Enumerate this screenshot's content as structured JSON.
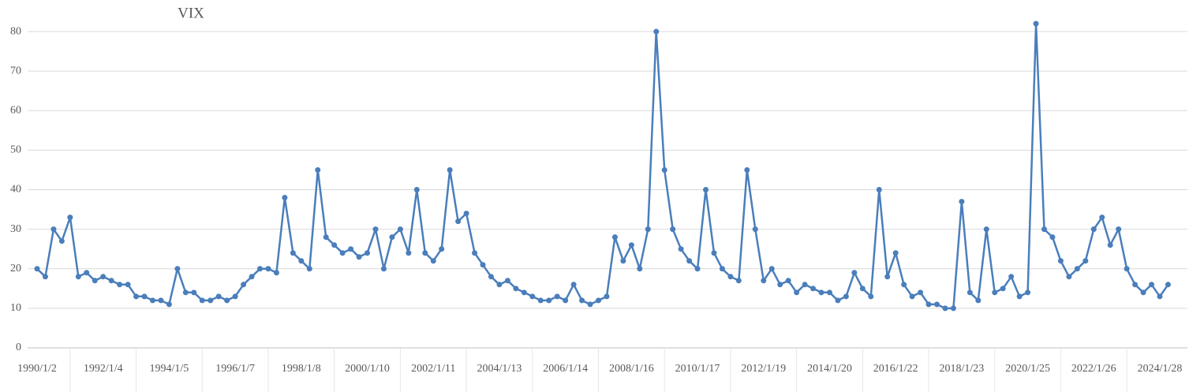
{
  "chart_data": {
    "type": "line",
    "title": "VIX",
    "categories": [
      "1990/1/2",
      null,
      null,
      null,
      null,
      null,
      null,
      null,
      "1992/1/4",
      null,
      null,
      null,
      null,
      null,
      null,
      null,
      "1994/1/5",
      null,
      null,
      null,
      null,
      null,
      null,
      null,
      "1996/1/7",
      null,
      null,
      null,
      null,
      null,
      null,
      null,
      "1998/1/8",
      null,
      null,
      null,
      null,
      null,
      null,
      null,
      "2000/1/10",
      null,
      null,
      null,
      null,
      null,
      null,
      null,
      "2002/1/11",
      null,
      null,
      null,
      null,
      null,
      null,
      null,
      "2004/1/13",
      null,
      null,
      null,
      null,
      null,
      null,
      null,
      "2006/1/14",
      null,
      null,
      null,
      null,
      null,
      null,
      null,
      "2008/1/16",
      null,
      null,
      null,
      null,
      null,
      null,
      null,
      "2010/1/17",
      null,
      null,
      null,
      null,
      null,
      null,
      null,
      "2012/1/19",
      null,
      null,
      null,
      null,
      null,
      null,
      null,
      "2014/1/20",
      null,
      null,
      null,
      null,
      null,
      null,
      null,
      "2016/1/22",
      null,
      null,
      null,
      null,
      null,
      null,
      null,
      "2018/1/23",
      null,
      null,
      null,
      null,
      null,
      null,
      null,
      "2020/1/25",
      null,
      null,
      null,
      null,
      null,
      null,
      null,
      "2022/1/26",
      null,
      null,
      null,
      null,
      null,
      null,
      null,
      "2024/1/28",
      null
    ],
    "series": [
      {
        "name": "VIX",
        "color": "#4a7ebb",
        "values": [
          20,
          18,
          30,
          27,
          33,
          18,
          19,
          17,
          18,
          17,
          16,
          16,
          13,
          13,
          12,
          12,
          11,
          20,
          14,
          14,
          12,
          12,
          13,
          12,
          13,
          16,
          18,
          20,
          20,
          19,
          38,
          24,
          22,
          20,
          45,
          28,
          26,
          24,
          25,
          23,
          24,
          30,
          20,
          28,
          30,
          24,
          40,
          24,
          22,
          25,
          45,
          32,
          34,
          24,
          21,
          18,
          16,
          17,
          15,
          14,
          13,
          12,
          12,
          13,
          12,
          16,
          12,
          11,
          12,
          13,
          28,
          22,
          26,
          20,
          30,
          80,
          45,
          30,
          25,
          22,
          20,
          40,
          24,
          20,
          18,
          17,
          45,
          30,
          17,
          20,
          16,
          17,
          14,
          16,
          15,
          14,
          14,
          12,
          13,
          19,
          15,
          13,
          40,
          18,
          24,
          16,
          13,
          14,
          11,
          11,
          10,
          10,
          37,
          14,
          12,
          30,
          14,
          15,
          18,
          13,
          14,
          82,
          30,
          28,
          22,
          18,
          20,
          22,
          30,
          33,
          26,
          30,
          20,
          16,
          14,
          16,
          13,
          16
        ]
      }
    ],
    "ylim": [
      0,
      85
    ],
    "yticks": [
      0,
      10,
      20,
      30,
      40,
      50,
      60,
      70,
      80
    ],
    "grid": true
  }
}
